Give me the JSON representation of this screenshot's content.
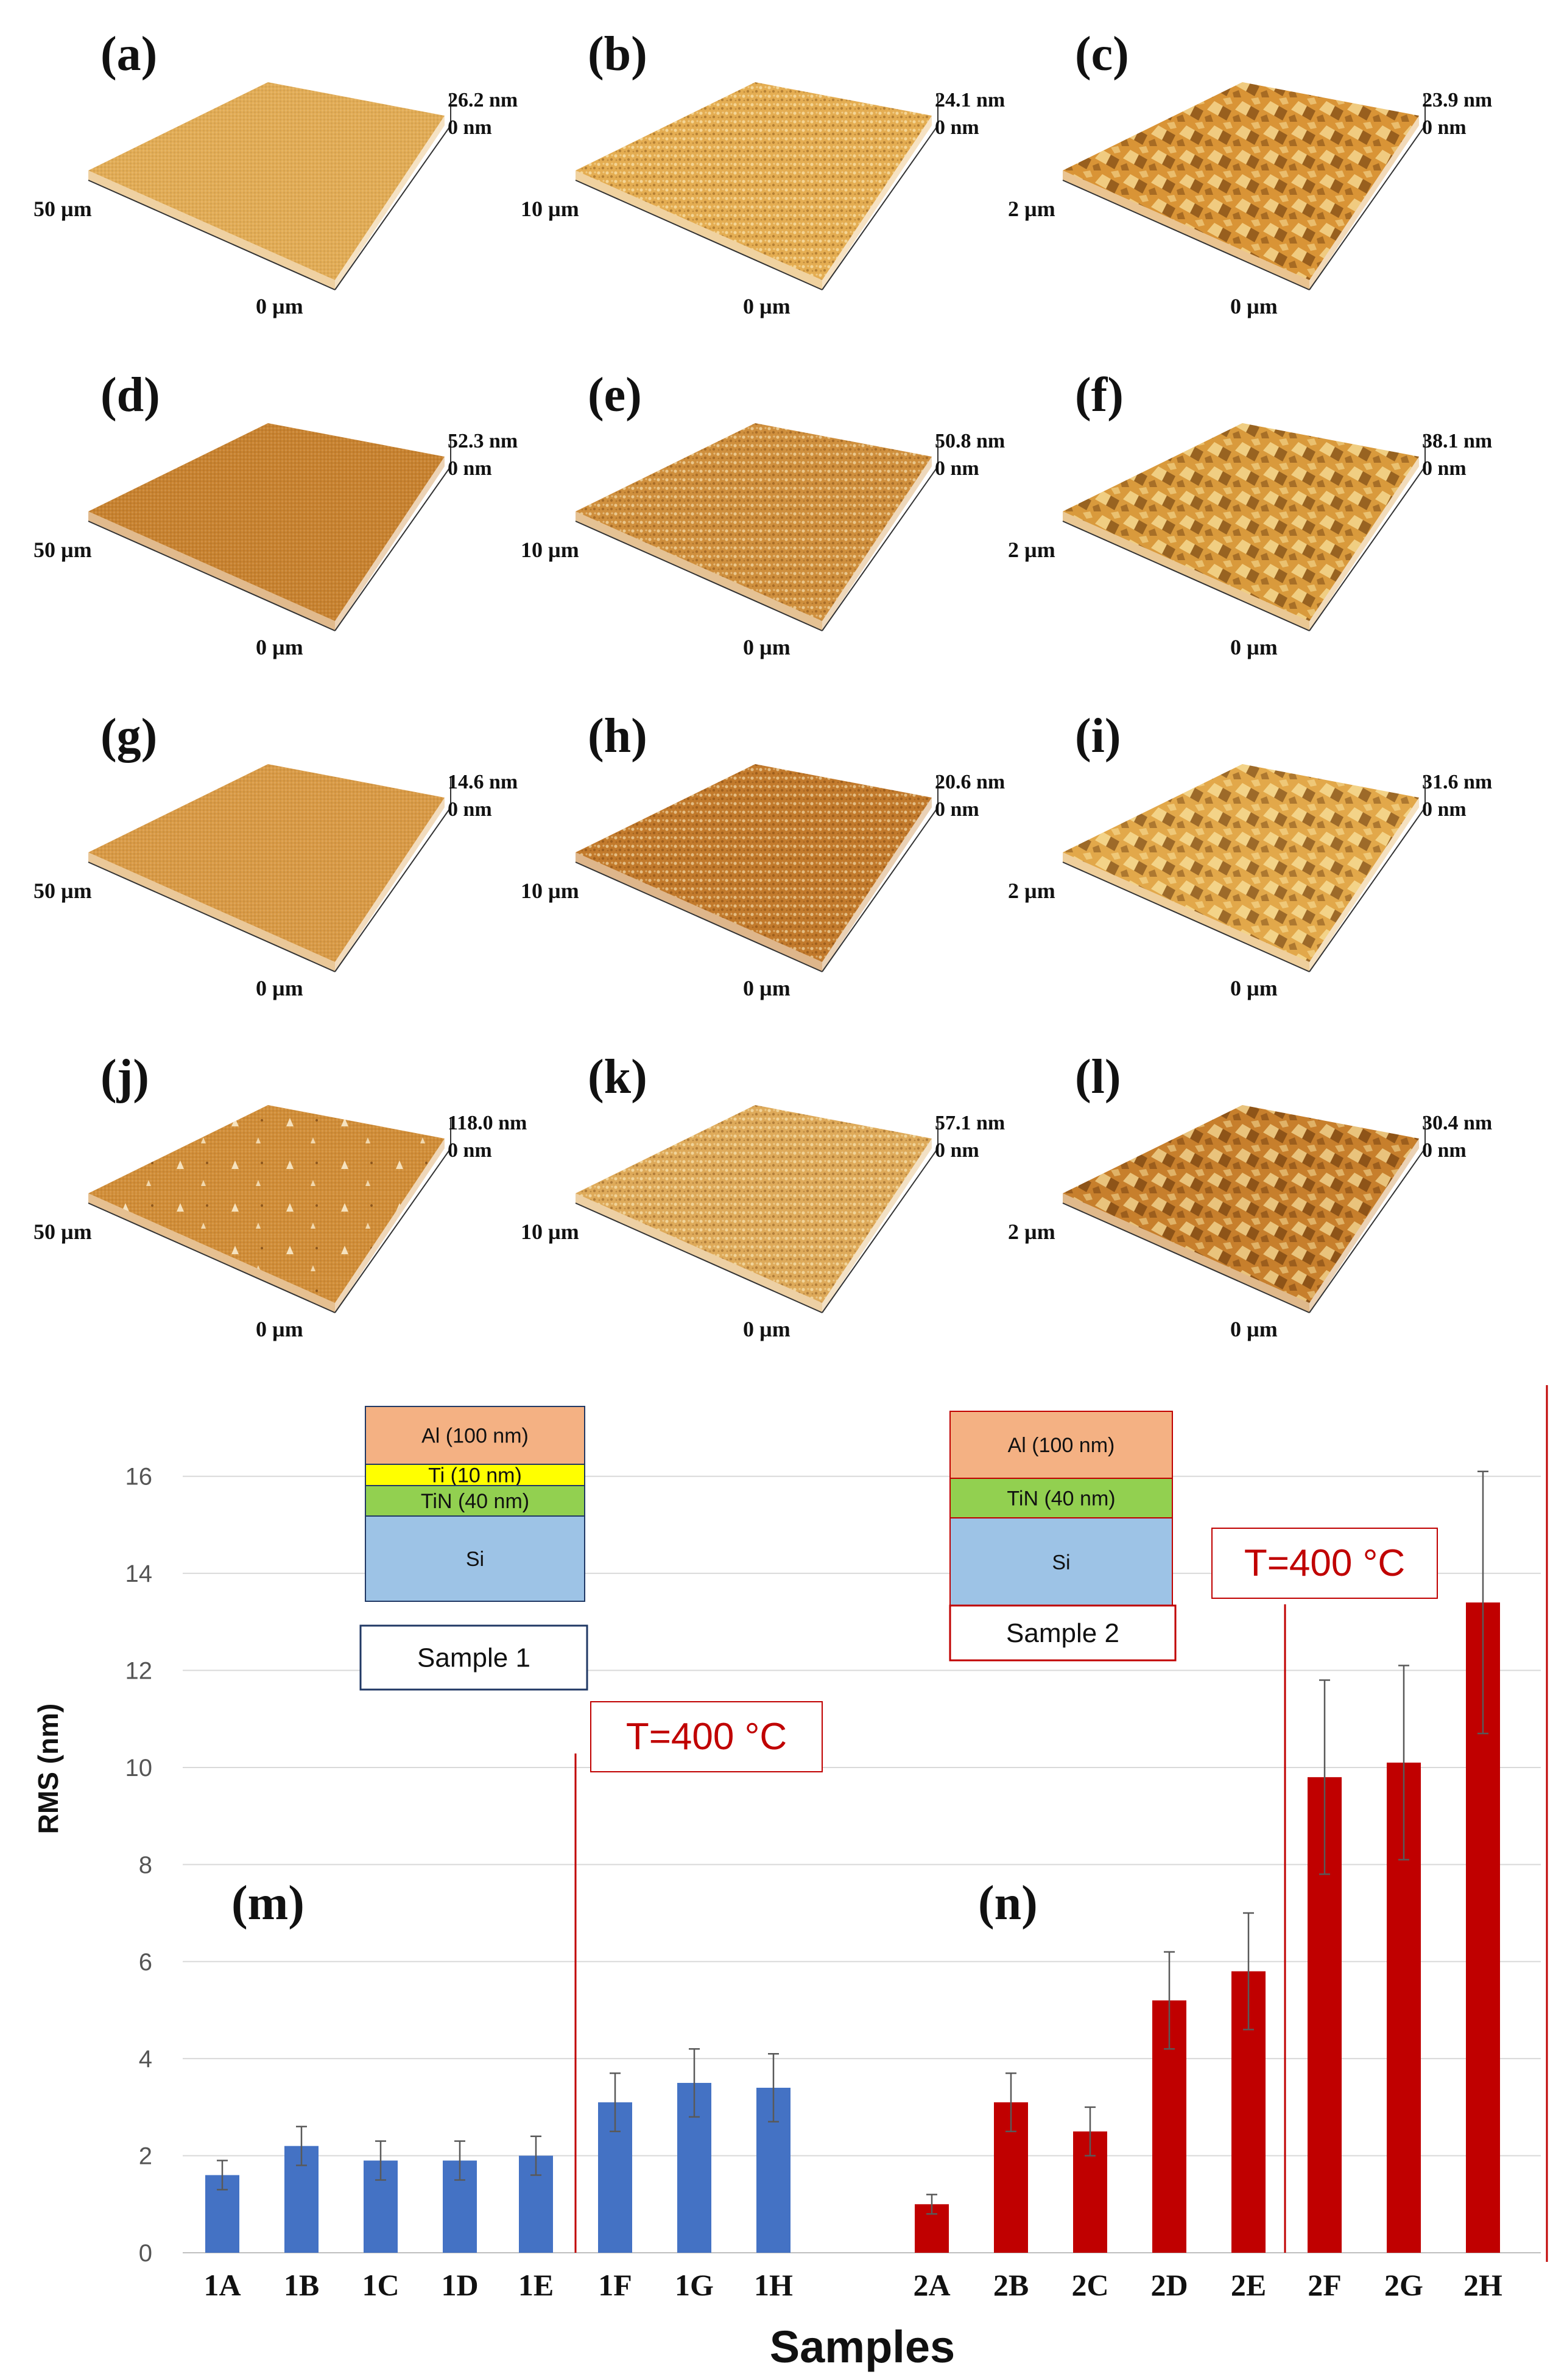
{
  "afm_panels": [
    {
      "label": "(a)",
      "zmax": "26.2 nm",
      "zmin": "0 nm",
      "scan": "50 µm",
      "origin": "0 µm",
      "color": "#e2ac55",
      "grain": "smooth"
    },
    {
      "label": "(b)",
      "zmax": "24.1 nm",
      "zmin": "0 nm",
      "scan": "10 µm",
      "origin": "0 µm",
      "color": "#e4ad52",
      "grain": "fine"
    },
    {
      "label": "(c)",
      "zmax": "23.9 nm",
      "zmin": "0 nm",
      "scan": "2 µm",
      "origin": "0 µm",
      "color": "#d99436",
      "grain": "coarse"
    },
    {
      "label": "(d)",
      "zmax": "52.3 nm",
      "zmin": "0 nm",
      "scan": "50 µm",
      "origin": "0 µm",
      "color": "#c8822f",
      "grain": "smooth"
    },
    {
      "label": "(e)",
      "zmax": "50.8 nm",
      "zmin": "0 nm",
      "scan": "10 µm",
      "origin": "0 µm",
      "color": "#cf8f3d",
      "grain": "fine"
    },
    {
      "label": "(f)",
      "zmax": "38.1 nm",
      "zmin": "0 nm",
      "scan": "2 µm",
      "origin": "0 µm",
      "color": "#d99a3c",
      "grain": "coarse"
    },
    {
      "label": "(g)",
      "zmax": "14.6 nm",
      "zmin": "0 nm",
      "scan": "50 µm",
      "origin": "0 µm",
      "color": "#d99a45",
      "grain": "smooth"
    },
    {
      "label": "(h)",
      "zmax": "20.6 nm",
      "zmin": "0 nm",
      "scan": "10 µm",
      "origin": "0 µm",
      "color": "#c27a2c",
      "grain": "fine"
    },
    {
      "label": "(i)",
      "zmax": "31.6 nm",
      "zmin": "0 nm",
      "scan": "2 µm",
      "origin": "0 µm",
      "color": "#e2a84a",
      "grain": "coarse"
    },
    {
      "label": "(j)",
      "zmax": "118.0 nm",
      "zmin": "0 nm",
      "scan": "50 µm",
      "origin": "0 µm",
      "color": "#d18d37",
      "grain": "spiky"
    },
    {
      "label": "(k)",
      "zmax": "57.1 nm",
      "zmin": "0 nm",
      "scan": "10 µm",
      "origin": "0 µm",
      "color": "#deaa5a",
      "grain": "fine"
    },
    {
      "label": "(l)",
      "zmax": "30.4 nm",
      "zmin": "0 nm",
      "scan": "2 µm",
      "origin": "0 µm",
      "color": "#c77f2c",
      "grain": "coarse"
    }
  ],
  "chart_data": {
    "type": "bar",
    "ylabel": "RMS (nm)",
    "xlabel": "Samples",
    "ylim": [
      0,
      17
    ],
    "yticks": [
      0,
      2,
      4,
      6,
      8,
      10,
      12,
      14,
      16
    ],
    "grid": true,
    "series": [
      {
        "name": "Sample 1",
        "panel": "(m)",
        "color": "#4472c4",
        "categories": [
          "1A",
          "1B",
          "1C",
          "1D",
          "1E",
          "1F",
          "1G",
          "1H"
        ],
        "values": [
          1.6,
          2.2,
          1.9,
          1.9,
          2.0,
          3.1,
          3.5,
          3.4
        ],
        "errors": [
          0.3,
          0.4,
          0.4,
          0.4,
          0.4,
          0.6,
          0.7,
          0.7
        ]
      },
      {
        "name": "Sample 2",
        "panel": "(n)",
        "color": "#c00000",
        "categories": [
          "2A",
          "2B",
          "2C",
          "2D",
          "2E",
          "2F",
          "2G",
          "2H"
        ],
        "values": [
          1.0,
          3.1,
          2.5,
          5.2,
          5.8,
          9.8,
          10.1,
          13.4
        ],
        "errors": [
          0.2,
          0.6,
          0.5,
          1.0,
          1.2,
          2.0,
          2.0,
          2.7
        ]
      }
    ],
    "annotations": [
      {
        "text": "T=400 °C",
        "after_category": "1E"
      },
      {
        "text": "T=400 °C",
        "after_category": "2E"
      }
    ],
    "stacks": [
      {
        "title": "Sample 1",
        "layers": [
          {
            "text": "Al (100 nm)",
            "color": "#f4b183"
          },
          {
            "text": "Ti (10 nm)",
            "color": "#ffff00"
          },
          {
            "text": "TiN (40 nm)",
            "color": "#92d050"
          },
          {
            "text": "Si",
            "color": "#9dc3e6"
          }
        ],
        "border": "#203864"
      },
      {
        "title": "Sample 2",
        "layers": [
          {
            "text": "Al (100 nm)",
            "color": "#f4b183"
          },
          {
            "text": "TiN (40 nm)",
            "color": "#92d050"
          },
          {
            "text": "Si",
            "color": "#9dc3e6"
          }
        ],
        "border": "#c00000"
      }
    ]
  }
}
